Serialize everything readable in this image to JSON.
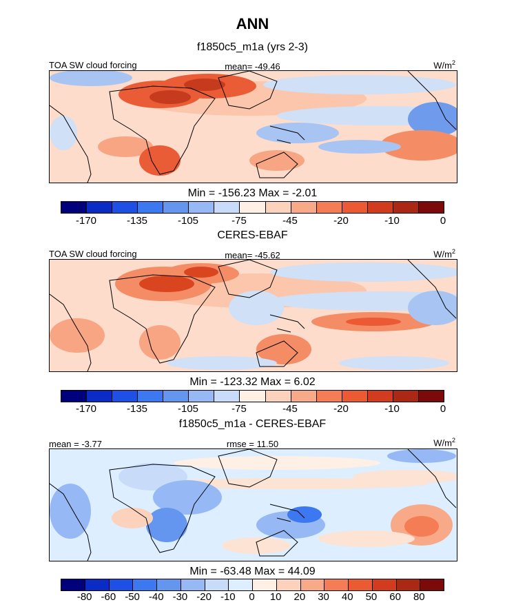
{
  "title": "ANN",
  "panels": [
    {
      "subtitle": "f1850c5_m1a (yrs 2-3)",
      "left_label": "TOA SW cloud forcing",
      "center_label": "mean= -49.46",
      "units_base": "W/m",
      "units_sup": "2",
      "minmax": "Min = -156.23 Max =  -2.01",
      "colorbar": {
        "colors": [
          "#00007d",
          "#0a2bc4",
          "#1e50e6",
          "#3c78f0",
          "#6496f0",
          "#96b9f5",
          "#c8dcfa",
          "#fff0e6",
          "#fcd2bc",
          "#f8aa88",
          "#f47d55",
          "#eb5a32",
          "#d23c1e",
          "#aa2814",
          "#7d0a0a"
        ],
        "ticks": [
          "-170",
          "-135",
          "-105",
          "-75",
          "-45",
          "-20",
          "-10",
          "0"
        ]
      }
    },
    {
      "subtitle": "CERES-EBAF",
      "left_label": "TOA SW cloud forcing",
      "center_label": "mean= -45.62",
      "units_base": "W/m",
      "units_sup": "2",
      "minmax": "Min = -123.32 Max =   6.02",
      "colorbar": {
        "colors": [
          "#00007d",
          "#0a2bc4",
          "#1e50e6",
          "#3c78f0",
          "#6496f0",
          "#96b9f5",
          "#c8dcfa",
          "#fff0e6",
          "#fcd2bc",
          "#f8aa88",
          "#f47d55",
          "#eb5a32",
          "#d23c1e",
          "#aa2814",
          "#7d0a0a"
        ],
        "ticks": [
          "-170",
          "-135",
          "-105",
          "-75",
          "-45",
          "-20",
          "-10",
          "0"
        ]
      }
    },
    {
      "subtitle": "f1850c5_m1a - CERES-EBAF",
      "left_label": "mean =  -3.77",
      "center_label": "rmse =  11.50",
      "units_base": "W/m",
      "units_sup": "2",
      "minmax": "Min = -63.48 Max =  44.09",
      "colorbar": {
        "colors": [
          "#00007d",
          "#0a2bc4",
          "#1e50e6",
          "#3c78f0",
          "#6496f0",
          "#96b9f5",
          "#c8dcfa",
          "#dceeff",
          "#fff0e6",
          "#fcd2bc",
          "#f8aa88",
          "#f47d55",
          "#eb5a32",
          "#d23c1e",
          "#aa2814",
          "#7d0a0a"
        ],
        "ticks": [
          "-80",
          "-60",
          "-50",
          "-40",
          "-30",
          "-20",
          "-10",
          "0",
          "10",
          "20",
          "30",
          "40",
          "50",
          "60",
          "80"
        ]
      }
    }
  ]
}
